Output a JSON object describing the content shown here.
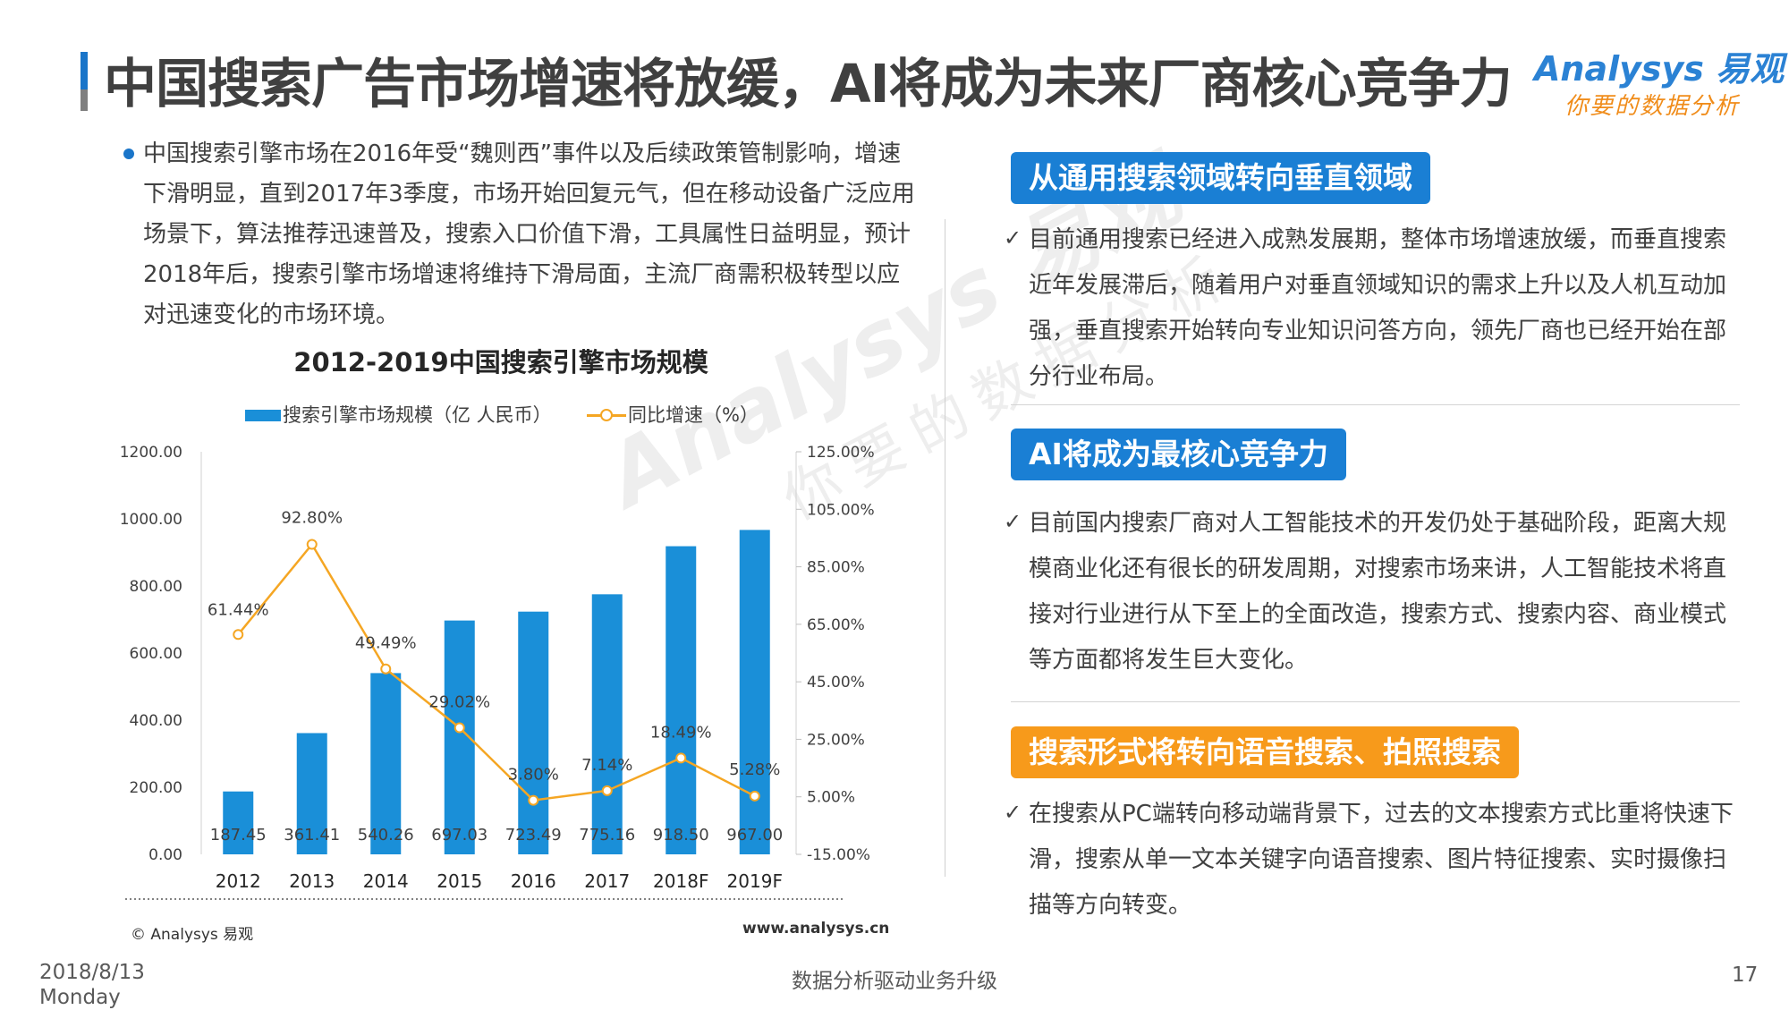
{
  "header": {
    "title": "中国搜索广告市场增速将放缓，AI将成为未来厂商核心竞争力",
    "logo_en": "Analysys 易观",
    "logo_tagline": "你要的数据分析"
  },
  "intro": {
    "text": "中国搜索引擎市场在2016年受“魏则西”事件以及后续政策管制影响，增速下滑明显，直到2017年3季度，市场开始回复元气，但在移动设备广泛应用场景下，算法推荐迅速普及，搜索入口价值下滑，工具属性日益明显，预计2018年后，搜索引擎市场增速将维持下滑局面，主流厂商需积极转型以应对迅速变化的市场环境。"
  },
  "chart_data": {
    "type": "bar",
    "title": "2012-2019中国搜索引擎市场规模",
    "categories": [
      "2012",
      "2013",
      "2014",
      "2015",
      "2016",
      "2017",
      "2018F",
      "2019F"
    ],
    "series": [
      {
        "name": "搜索引擎市场规模（亿 人民币）",
        "type": "bar",
        "axis": "left",
        "values": [
          187.45,
          361.41,
          540.26,
          697.03,
          723.49,
          775.16,
          918.5,
          967.0
        ],
        "labels": [
          "187.45",
          "361.41",
          "540.26",
          "697.03",
          "723.49",
          "775.16",
          "918.50",
          "967.00"
        ],
        "color": "#1a8fd8"
      },
      {
        "name": "同比增速（%）",
        "type": "line",
        "axis": "right",
        "values": [
          61.44,
          92.8,
          49.49,
          29.02,
          3.8,
          7.14,
          18.49,
          5.28
        ],
        "labels": [
          "61.44%",
          "92.80%",
          "49.49%",
          "29.02%",
          "3.80%",
          "7.14%",
          "18.49%",
          "5.28%"
        ],
        "color": "#f5a623"
      }
    ],
    "y_left": {
      "range": [
        0,
        1200
      ],
      "ticks": [
        "0.00",
        "200.00",
        "400.00",
        "600.00",
        "800.00",
        "1000.00",
        "1200.00"
      ]
    },
    "y_right": {
      "range": [
        -15,
        125
      ],
      "ticks": [
        "-15.00%",
        "5.00%",
        "25.00%",
        "45.00%",
        "65.00%",
        "85.00%",
        "105.00%",
        "125.00%"
      ]
    },
    "legend": "top",
    "grid": false
  },
  "chart_footer": {
    "credit": "© Analysys 易观",
    "url": "www.analysys.cn"
  },
  "sections": [
    {
      "heading": "从通用搜索领域转向垂直领域",
      "text": "目前通用搜索已经进入成熟发展期，整体市场增速放缓，而垂直搜索近年发展滞后，随着用户对垂直领域知识的需求上升以及人机互动加强，垂直搜索开始转向专业知识问答方向，领先厂商也已经开始在部分行业布局。"
    },
    {
      "heading": "AI将成为最核心竞争力",
      "text": "目前国内搜索厂商对人工智能技术的开发仍处于基础阶段，距离大规模商业化还有很长的研发周期，对搜索市场来讲，人工智能技术将直接对行业进行从下至上的全面改造，搜索方式、搜索内容、商业模式等方面都将发生巨大变化。"
    },
    {
      "heading": "搜索形式将转向语音搜索、拍照搜索",
      "text": "在搜索从PC端转向移动端背景下，过去的文本搜索方式比重将快速下滑，搜索从单一文本关键字向语音搜索、图片特征搜索、实时摄像扫描等方向转变。"
    }
  ],
  "check_mark": "✓",
  "watermark": {
    "en": "Analysys 易观",
    "cn": "你要的数据分析"
  },
  "footer": {
    "date": "2018/8/13",
    "weekday": "Monday",
    "center": "数据分析驱动业务升级",
    "page": "17"
  }
}
